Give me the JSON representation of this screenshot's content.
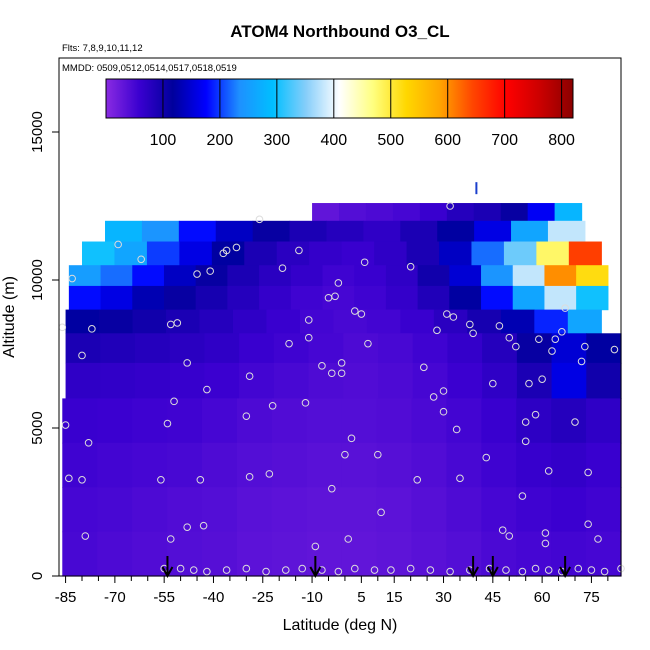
{
  "chart_data": {
    "type": "heatmap",
    "title": "ATOM4 Northbound O3_CL",
    "subtitle_flights": "Flts: 7,8,9,10,11,12",
    "subtitle_dates": "MMDD: 0509,0512,0514,0517,0518,0519",
    "xlabel": "Latitude (deg N)",
    "ylabel": "Altitude (m)",
    "xlim": [
      -87,
      84
    ],
    "ylim": [
      0,
      17500
    ],
    "x_ticks": [
      -85,
      -70,
      -55,
      -40,
      -25,
      -10,
      5,
      15,
      30,
      45,
      60,
      75
    ],
    "x_tick_labels": [
      "-85",
      "-70",
      "-55",
      "-40",
      "-25",
      "-10",
      "5",
      "15",
      "30",
      "45",
      "60",
      "75"
    ],
    "y_ticks": [
      0,
      5000,
      10000,
      15000
    ],
    "y_tick_labels": [
      "0",
      "5000",
      "10000",
      "15000"
    ],
    "colorbar": {
      "min": 0,
      "max": 820,
      "ticks": [
        100,
        200,
        300,
        400,
        500,
        600,
        700,
        800
      ],
      "tick_labels": [
        "100",
        "200",
        "300",
        "400",
        "500",
        "600",
        "700",
        "800"
      ],
      "colors": [
        "#8a2be2",
        "#3a00d0",
        "#00009c",
        "#0000ff",
        "#1e90ff",
        "#00bfff",
        "#87cefa",
        "#ffffff",
        "#ffff80",
        "#ffd700",
        "#ffa500",
        "#ff4500",
        "#ff0000",
        "#cc0000",
        "#8b0000"
      ]
    },
    "surface_profile_markers_lat": [
      -54,
      -9,
      39,
      45,
      67
    ],
    "tall_marker": {
      "lat": 40,
      "alt": 12900
    },
    "altitude_bands": [
      {
        "alt_bottom": 12000,
        "alt_top": 12600,
        "lat_start": -10,
        "lat_end": 72,
        "values": [
          30,
          40,
          45,
          50,
          60,
          80,
          90,
          110,
          170,
          280
        ]
      },
      {
        "alt_bottom": 11300,
        "alt_top": 12000,
        "lat_start": -73,
        "lat_end": 73,
        "values": [
          280,
          240,
          180,
          140,
          110,
          90,
          80,
          70,
          90,
          120,
          160,
          260,
          380
        ]
      },
      {
        "alt_bottom": 10500,
        "alt_top": 11300,
        "lat_start": -80,
        "lat_end": 78,
        "values": [
          300,
          260,
          200,
          160,
          120,
          90,
          75,
          65,
          60,
          70,
          90,
          140,
          220,
          340,
          480,
          650
        ]
      },
      {
        "alt_bottom": 9800,
        "alt_top": 10500,
        "lat_start": -84,
        "lat_end": 80,
        "values": [
          250,
          220,
          180,
          140,
          110,
          90,
          75,
          65,
          55,
          60,
          70,
          100,
          150,
          240,
          380,
          600,
          520
        ]
      },
      {
        "alt_bottom": 9000,
        "alt_top": 9800,
        "lat_start": -84,
        "lat_end": 80,
        "values": [
          180,
          160,
          130,
          110,
          95,
          80,
          65,
          55,
          50,
          55,
          65,
          85,
          120,
          180,
          260,
          380,
          300
        ]
      },
      {
        "alt_bottom": 8200,
        "alt_top": 9000,
        "lat_start": -85,
        "lat_end": 78,
        "values": [
          120,
          110,
          100,
          90,
          80,
          70,
          60,
          52,
          48,
          52,
          60,
          75,
          95,
          130,
          190,
          260
        ]
      },
      {
        "alt_bottom": 7200,
        "alt_top": 8200,
        "lat_start": -85,
        "lat_end": 84,
        "values": [
          90,
          85,
          80,
          75,
          70,
          60,
          55,
          50,
          45,
          48,
          55,
          65,
          80,
          110,
          150,
          120
        ]
      },
      {
        "alt_bottom": 6000,
        "alt_top": 7200,
        "lat_start": -85,
        "lat_end": 84,
        "values": [
          70,
          68,
          65,
          62,
          58,
          52,
          48,
          44,
          42,
          45,
          50,
          58,
          70,
          90,
          160,
          100
        ]
      },
      {
        "alt_bottom": 4500,
        "alt_top": 6000,
        "lat_start": -86,
        "lat_end": 84,
        "values": [
          60,
          58,
          56,
          54,
          50,
          45,
          42,
          40,
          40,
          42,
          46,
          52,
          60,
          72,
          80,
          70
        ]
      },
      {
        "alt_bottom": 3000,
        "alt_top": 4500,
        "lat_start": -86,
        "lat_end": 84,
        "values": [
          55,
          52,
          50,
          48,
          44,
          40,
          38,
          36,
          36,
          38,
          42,
          48,
          55,
          62,
          66,
          60
        ]
      },
      {
        "alt_bottom": 1500,
        "alt_top": 3000,
        "lat_start": -86,
        "lat_end": 84,
        "values": [
          50,
          48,
          45,
          42,
          40,
          36,
          34,
          32,
          32,
          34,
          38,
          44,
          50,
          55,
          58,
          54
        ]
      },
      {
        "alt_bottom": 0,
        "alt_top": 1500,
        "lat_start": -86,
        "lat_end": 84,
        "values": [
          48,
          45,
          42,
          40,
          38,
          34,
          32,
          30,
          30,
          32,
          36,
          40,
          46,
          50,
          52,
          50
        ]
      }
    ],
    "samples": [
      [
        -86,
        8400
      ],
      [
        -85,
        5100
      ],
      [
        -84,
        3300
      ],
      [
        -83,
        10050
      ],
      [
        -80,
        7450
      ],
      [
        -80,
        3250
      ],
      [
        -79,
        1350
      ],
      [
        -78,
        4500
      ],
      [
        -77,
        8350
      ],
      [
        -69,
        11200
      ],
      [
        -62,
        10700
      ],
      [
        -56,
        3250
      ],
      [
        -54,
        5150
      ],
      [
        -53,
        8500
      ],
      [
        -53,
        1250
      ],
      [
        -52,
        5900
      ],
      [
        -51,
        8550
      ],
      [
        -48,
        1650
      ],
      [
        -48,
        7200
      ],
      [
        -45,
        10200
      ],
      [
        -44,
        3250
      ],
      [
        -43,
        1700
      ],
      [
        -42,
        6300
      ],
      [
        -41,
        10300
      ],
      [
        -37,
        10900
      ],
      [
        -36,
        11000
      ],
      [
        -33,
        11100
      ],
      [
        -30,
        5400
      ],
      [
        -29,
        6750
      ],
      [
        -29,
        3350
      ],
      [
        -26,
        12050
      ],
      [
        -23,
        3450
      ],
      [
        -22,
        5750
      ],
      [
        -19,
        10400
      ],
      [
        -17,
        7850
      ],
      [
        -14,
        11000
      ],
      [
        -12,
        5850
      ],
      [
        -11,
        8050
      ],
      [
        -11,
        8650
      ],
      [
        -9,
        1000
      ],
      [
        -7,
        7100
      ],
      [
        -5,
        9400
      ],
      [
        -4,
        2950
      ],
      [
        -4,
        6850
      ],
      [
        -3,
        9450
      ],
      [
        -2,
        9900
      ],
      [
        -1,
        7200
      ],
      [
        -1,
        6850
      ],
      [
        0,
        4100
      ],
      [
        1,
        1250
      ],
      [
        2,
        4650
      ],
      [
        3,
        8950
      ],
      [
        5,
        8850
      ],
      [
        6,
        10600
      ],
      [
        7,
        7850
      ],
      [
        10,
        4100
      ],
      [
        11,
        2150
      ],
      [
        20,
        10450
      ],
      [
        22,
        3250
      ],
      [
        24,
        7050
      ],
      [
        27,
        6050
      ],
      [
        28,
        8300
      ],
      [
        30,
        5550
      ],
      [
        30,
        6250
      ],
      [
        31,
        8850
      ],
      [
        32,
        12500
      ],
      [
        33,
        8750
      ],
      [
        34,
        4950
      ],
      [
        35,
        3300
      ],
      [
        38,
        8500
      ],
      [
        39,
        8200
      ],
      [
        43,
        4000
      ],
      [
        45,
        6500
      ],
      [
        47,
        8450
      ],
      [
        48,
        1550
      ],
      [
        50,
        1350
      ],
      [
        50,
        8050
      ],
      [
        52,
        7750
      ],
      [
        54,
        2700
      ],
      [
        55,
        4550
      ],
      [
        55,
        5200
      ],
      [
        56,
        6500
      ],
      [
        58,
        5450
      ],
      [
        59,
        8000
      ],
      [
        60,
        6650
      ],
      [
        61,
        1100
      ],
      [
        61,
        1450
      ],
      [
        62,
        3550
      ],
      [
        63,
        7600
      ],
      [
        64,
        8000
      ],
      [
        66,
        8250
      ],
      [
        67,
        9050
      ],
      [
        70,
        5200
      ],
      [
        72,
        7250
      ],
      [
        73,
        7750
      ],
      [
        74,
        1750
      ],
      [
        74,
        3500
      ],
      [
        77,
        1250
      ],
      [
        82,
        7650
      ],
      [
        84,
        250
      ],
      [
        -55,
        250
      ],
      [
        -50,
        250
      ],
      [
        -46,
        200
      ],
      [
        -42,
        150
      ],
      [
        -36,
        200
      ],
      [
        -30,
        250
      ],
      [
        -24,
        150
      ],
      [
        -18,
        200
      ],
      [
        -13,
        250
      ],
      [
        -7,
        200
      ],
      [
        -2,
        150
      ],
      [
        3,
        250
      ],
      [
        9,
        200
      ],
      [
        14,
        200
      ],
      [
        20,
        250
      ],
      [
        26,
        200
      ],
      [
        32,
        150
      ],
      [
        38,
        200
      ],
      [
        44,
        250
      ],
      [
        49,
        200
      ],
      [
        54,
        150
      ],
      [
        58,
        250
      ],
      [
        62,
        200
      ],
      [
        66,
        150
      ],
      [
        71,
        250
      ],
      [
        75,
        200
      ],
      [
        79,
        150
      ]
    ]
  }
}
